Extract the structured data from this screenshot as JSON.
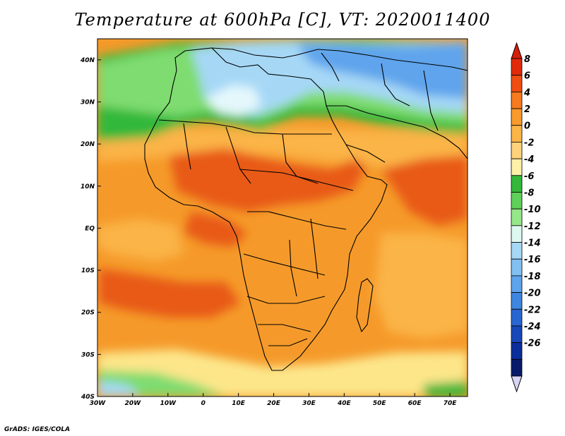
{
  "title": "Temperature at 600hPa [C], VT: 2020011400",
  "credit": "GrADS: IGES/COLA",
  "map": {
    "lon_range": [
      -30,
      75
    ],
    "lat_range": [
      -40,
      45
    ],
    "x_ticks": [
      {
        "lon": -30,
        "label": "30W"
      },
      {
        "lon": -20,
        "label": "20W"
      },
      {
        "lon": -10,
        "label": "10W"
      },
      {
        "lon": 0,
        "label": "0"
      },
      {
        "lon": 10,
        "label": "10E"
      },
      {
        "lon": 20,
        "label": "20E"
      },
      {
        "lon": 30,
        "label": "30E"
      },
      {
        "lon": 40,
        "label": "40E"
      },
      {
        "lon": 50,
        "label": "50E"
      },
      {
        "lon": 60,
        "label": "60E"
      },
      {
        "lon": 70,
        "label": "70E"
      }
    ],
    "y_ticks": [
      {
        "lat": 40,
        "label": "40N"
      },
      {
        "lat": 30,
        "label": "30N"
      },
      {
        "lat": 20,
        "label": "20N"
      },
      {
        "lat": 10,
        "label": "10N"
      },
      {
        "lat": 0,
        "label": "EQ"
      },
      {
        "lat": -10,
        "label": "10S"
      },
      {
        "lat": -20,
        "label": "20S"
      },
      {
        "lat": -30,
        "label": "30S"
      },
      {
        "lat": -40,
        "label": "40S"
      }
    ]
  },
  "colorbar": {
    "labels": [
      "8",
      "6",
      "4",
      "2",
      "0",
      "-2",
      "-4",
      "-6",
      "-8",
      "-10",
      "-12",
      "-14",
      "-16",
      "-18",
      "-20",
      "-22",
      "-24",
      "-26"
    ],
    "colors": [
      "#e02a0a",
      "#f04d12",
      "#f57a20",
      "#f99a2c",
      "#fbb446",
      "#fdd27a",
      "#fdf0a8",
      "#33b83a",
      "#5fd05a",
      "#96e68a",
      "#dcf8f0",
      "#a6d8f6",
      "#82c0f2",
      "#5ea4ec",
      "#3f86e0",
      "#2a66d0",
      "#1848b8",
      "#0a2e9a",
      "#081a6a"
    ],
    "arrow_top_color": "#d81e08",
    "arrow_bottom_color": "#d8d4f4"
  },
  "colors": {
    "warm_deep": "#e85a14",
    "warm": "#f59a2a",
    "warm_light": "#fbb446",
    "pale": "#fde68a",
    "green": "#33b83a",
    "green_light": "#7fdc70",
    "cold_light": "#a6d8f6",
    "cold": "#5ea4ec",
    "ice": "#e4f8fc",
    "coast": "#000000"
  }
}
